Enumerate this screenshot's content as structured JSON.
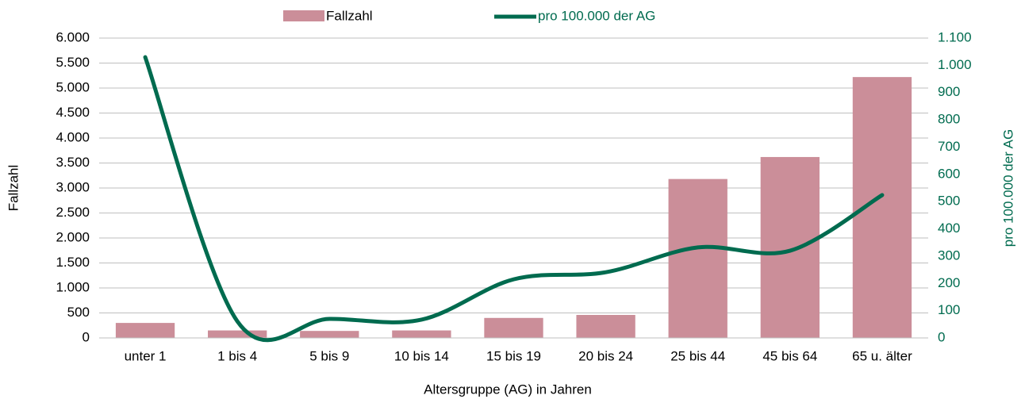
{
  "chart_data": {
    "type": "bar_line",
    "categories": [
      "unter 1",
      "1 bis 4",
      "5 bis 9",
      "10 bis 14",
      "15 bis 19",
      "20 bis 24",
      "25 bis 44",
      "45 bis 64",
      "65 u. älter"
    ],
    "series": [
      {
        "name": "Fallzahl",
        "color": "#cb8e99",
        "type": "bar",
        "values": [
          300,
          150,
          140,
          150,
          400,
          460,
          3180,
          3620,
          5220
        ]
      },
      {
        "name": "pro 100.000 der AG",
        "color": "#006b4f",
        "type": "line",
        "axis": "y2",
        "values": [
          1030,
          61,
          70,
          67,
          215,
          241,
          332,
          320,
          524
        ]
      }
    ],
    "xlabel": "Altersgruppe (AG) in Jahren",
    "ylabel": "Fallzahl",
    "y2label": "pro 100.000 der AG",
    "ylim": [
      0,
      6000
    ],
    "yticks": [
      0,
      500,
      {
        "value": 1000,
        "label": "1.000"
      },
      {
        "value": 1500,
        "label": "1.500"
      },
      {
        "value": 2000,
        "label": "2.000"
      },
      {
        "value": 2500,
        "label": "2.500"
      },
      {
        "value": 3000,
        "label": "3.000"
      },
      {
        "value": 3500,
        "label": "3.500"
      },
      {
        "value": 4000,
        "label": "4.000"
      },
      {
        "value": 4500,
        "label": "4.500"
      },
      {
        "value": 5000,
        "label": "5.000"
      },
      {
        "value": 5500,
        "label": "5.500"
      },
      {
        "value": 6000,
        "label": "6.000"
      }
    ],
    "y2lim": [
      0,
      1100
    ],
    "y2ticks": [
      0,
      100,
      200,
      300,
      400,
      500,
      600,
      700,
      800,
      900,
      {
        "value": 1000,
        "label": "1.000"
      },
      {
        "value": 1100,
        "label": "1.100"
      }
    ],
    "grid": true,
    "legend": "top"
  }
}
